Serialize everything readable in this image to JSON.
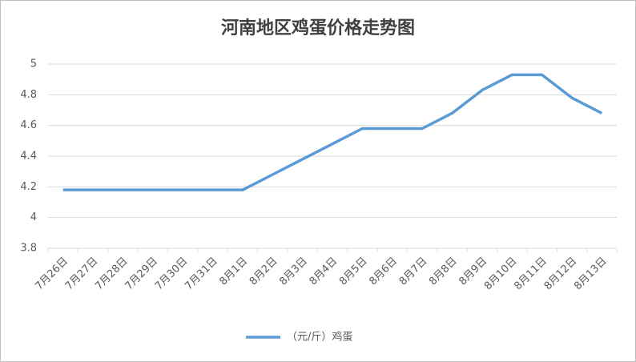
{
  "chart_data": {
    "type": "line",
    "title": "河南地区鸡蛋价格走势图",
    "categories": [
      "7月26日",
      "7月27日",
      "7月28日",
      "7月29日",
      "7月30日",
      "7月31日",
      "8月1日",
      "8月2日",
      "8月3日",
      "8月4日",
      "8月5日",
      "8月6日",
      "8月7日",
      "8月8日",
      "8月9日",
      "8月10日",
      "8月11日",
      "8月12日",
      "8月13日"
    ],
    "series": [
      {
        "name": "（元/斤）鸡蛋",
        "color": "#5b9bd5",
        "values": [
          4.18,
          4.18,
          4.18,
          4.18,
          4.18,
          4.18,
          4.18,
          4.28,
          4.38,
          4.48,
          4.58,
          4.58,
          4.58,
          4.68,
          4.83,
          4.93,
          4.93,
          4.78,
          4.68
        ]
      }
    ],
    "ylim": [
      3.8,
      5
    ],
    "yticks": [
      3.8,
      4,
      4.2,
      4.4,
      4.6,
      4.8,
      5
    ],
    "grid": true,
    "legend": "bottom"
  }
}
